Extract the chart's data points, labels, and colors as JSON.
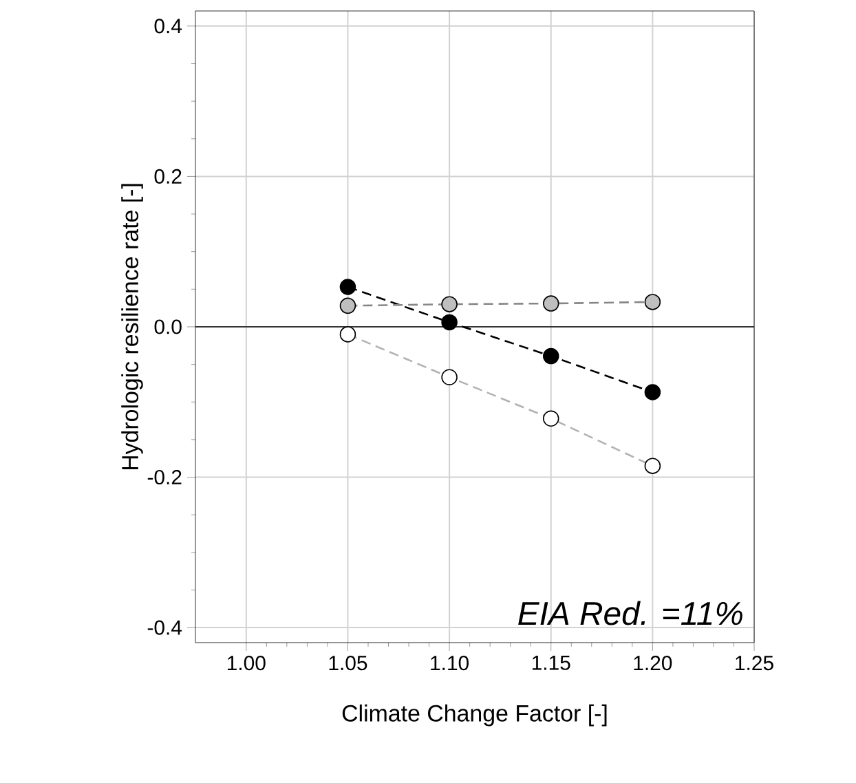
{
  "chart_data": {
    "type": "line",
    "xlabel": "Climate Change Factor [-]",
    "ylabel": "Hydrologic resilience rate [-]",
    "x": [
      1.05,
      1.1,
      1.15,
      1.2
    ],
    "series": [
      {
        "color": "#000000",
        "values": [
          0.053,
          0.006,
          -0.039,
          -0.087
        ]
      },
      {
        "color": "#bfbfbf",
        "values": [
          0.028,
          0.03,
          0.031,
          0.033
        ]
      },
      {
        "color": "#ffffff",
        "values": [
          -0.01,
          -0.067,
          -0.122,
          -0.185
        ]
      }
    ],
    "xlim": [
      0.975,
      1.25
    ],
    "ylim": [
      -0.42,
      0.42
    ],
    "xticks": [
      {
        "value": 1.0,
        "label": "1.00"
      },
      {
        "value": 1.05,
        "label": "1.05"
      },
      {
        "value": 1.1,
        "label": "1.10"
      },
      {
        "value": 1.15,
        "label": "1.15"
      },
      {
        "value": 1.2,
        "label": "1.20"
      },
      {
        "value": 1.25,
        "label": "1.25"
      }
    ],
    "yticks": [
      {
        "value": -0.4,
        "label": "-0.4"
      },
      {
        "value": -0.2,
        "label": "-0.2"
      },
      {
        "value": 0.0,
        "label": "0.0"
      },
      {
        "value": 0.2,
        "label": "0.2"
      },
      {
        "value": 0.4,
        "label": "0.4"
      }
    ],
    "ref_lines": [
      {
        "axis": "y",
        "value": 0,
        "color": "#000000"
      }
    ],
    "annotations": [
      "*EIA Red. =11%*"
    ],
    "grid": true,
    "marker": "circle",
    "line_style": "dashed"
  }
}
